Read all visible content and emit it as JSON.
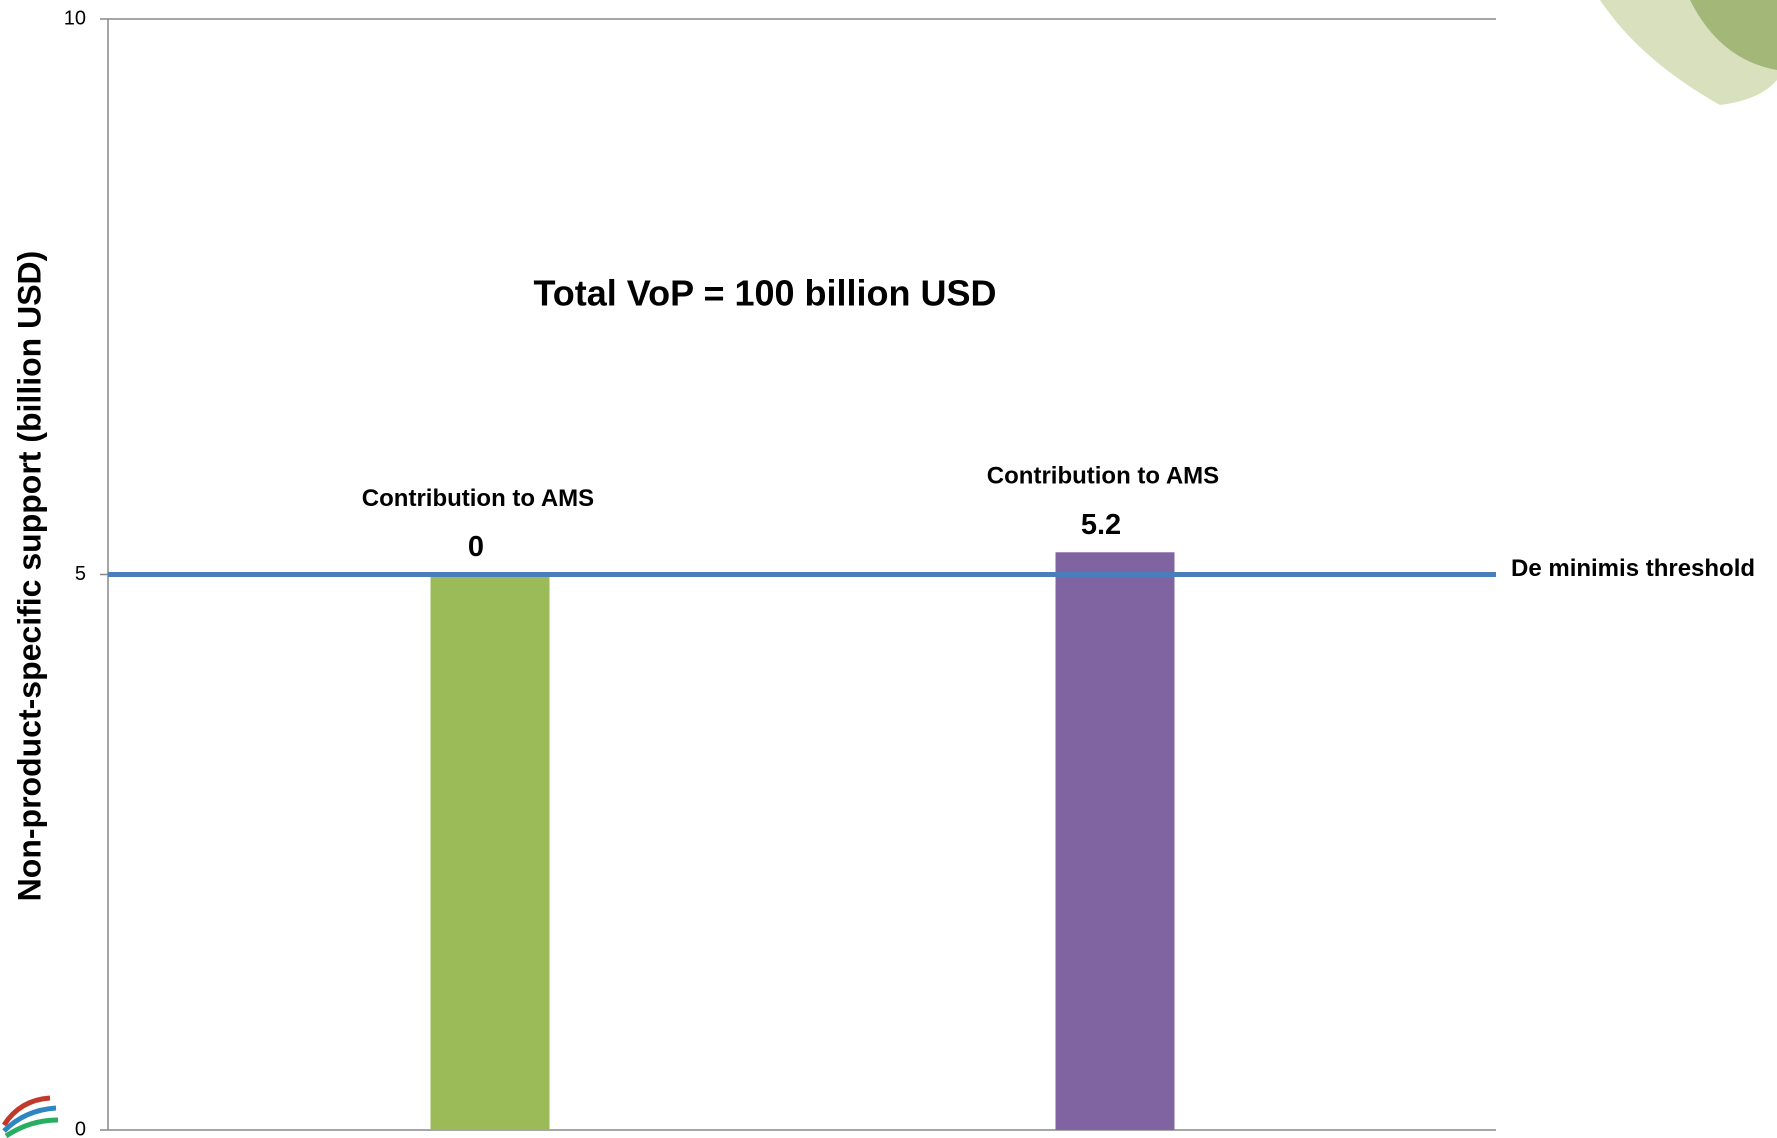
{
  "chart_data": {
    "type": "bar",
    "title": "Total VoP = 100 billion USD",
    "y_label": "Non-product-specific support (billion USD)",
    "categories": [
      null,
      null
    ],
    "values": [
      5,
      5.2
    ],
    "colors": [
      "#9bbb59",
      "#8064a2"
    ],
    "annotations": [
      "Contribution to AMS",
      "Contribution to AMS"
    ],
    "contributions": [
      0,
      5.2
    ],
    "threshold": {
      "value": 5,
      "label": "De minimis threshold",
      "color": "#4a7ebb"
    },
    "ylim": [
      0,
      10
    ],
    "yticks": [
      0,
      5,
      10
    ],
    "grid": false
  }
}
